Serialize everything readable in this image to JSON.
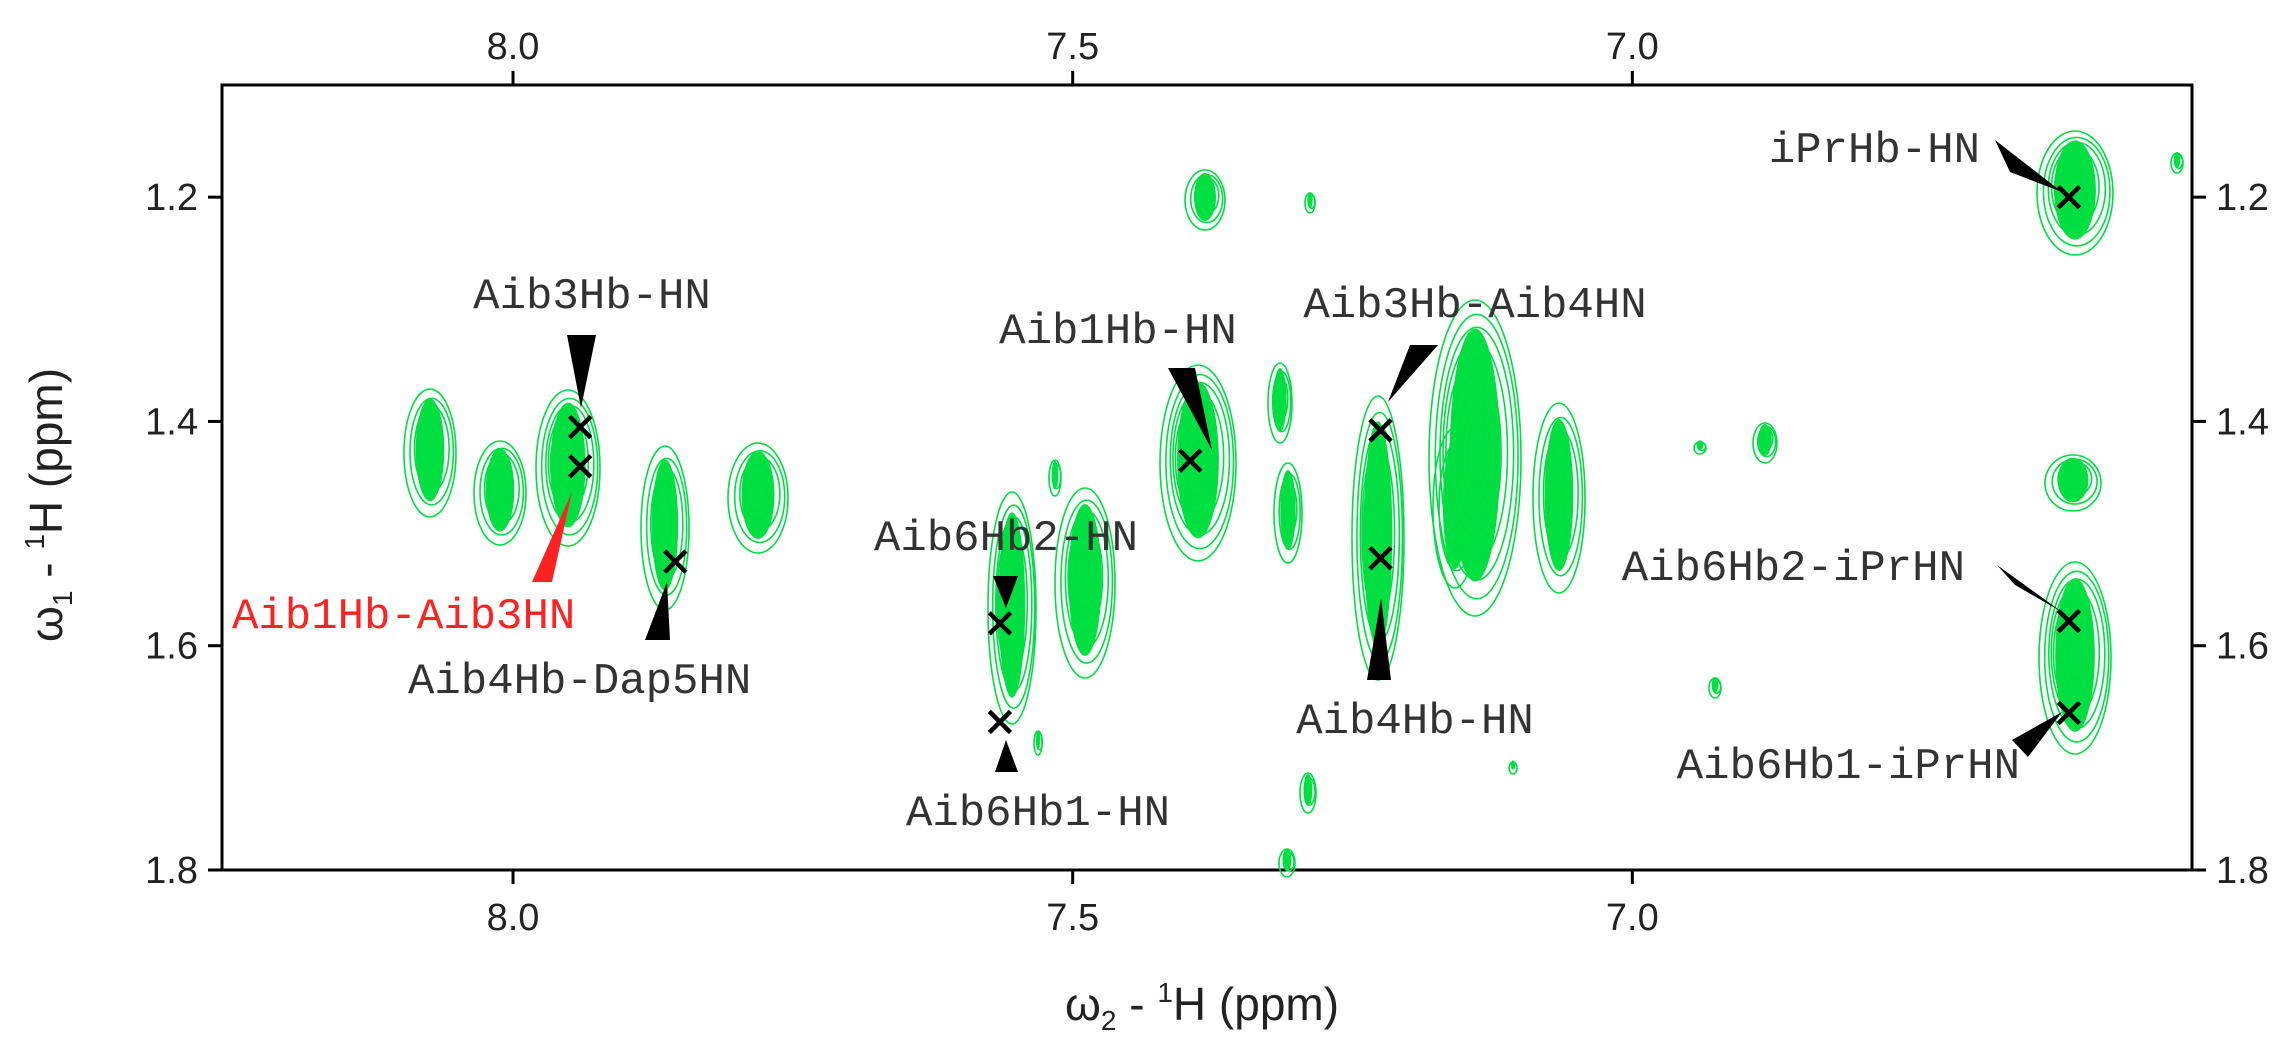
{
  "chart_data": {
    "type": "scatter",
    "xlabel_prefix": "ω",
    "xlabel_sub": "2",
    "xlabel_mid": " - ",
    "xlabel_sup": "1",
    "xlabel_tail": "H  (ppm)",
    "ylabel_prefix": "ω",
    "ylabel_sub": "1",
    "ylabel_mid": " - ",
    "ylabel_sup": "1",
    "ylabel_tail": "H  (ppm)",
    "x_axis": {
      "range": [
        8.26,
        6.5
      ],
      "reversed": true,
      "ticks": [
        8.0,
        7.5,
        7.0
      ],
      "tick_labels": [
        "8.0",
        "7.5",
        "7.0"
      ]
    },
    "y_axis": {
      "range": [
        1.1,
        1.8
      ],
      "reversed": true,
      "ticks": [
        1.2,
        1.4,
        1.6,
        1.8
      ],
      "tick_labels": [
        "1.2",
        "1.4",
        "1.6",
        "1.8"
      ]
    },
    "contour_color": "#00dd44",
    "marker_color": "#000000",
    "highlight_color": "#ff2222",
    "peaks": [
      {
        "label": "iPrHb-HN",
        "x": 6.61,
        "y": 1.2
      },
      {
        "label": "Aib3Hb-HN",
        "x": 7.94,
        "y": 1.405
      },
      {
        "label": "Aib1Hb-Aib3HN",
        "x": 7.94,
        "y": 1.44,
        "highlight": true
      },
      {
        "label": "Aib4Hb-Dap5HN",
        "x": 7.855,
        "y": 1.525
      },
      {
        "label": "Aib6Hb2-HN",
        "x": 7.565,
        "y": 1.58
      },
      {
        "label": "Aib6Hb1-HN",
        "x": 7.565,
        "y": 1.668
      },
      {
        "label": "Aib1Hb-HN",
        "x": 7.395,
        "y": 1.435
      },
      {
        "label": "Aib3Hb-Aib4HN",
        "x": 7.225,
        "y": 1.408
      },
      {
        "label": "Aib4Hb-HN",
        "x": 7.225,
        "y": 1.522
      },
      {
        "label": "Aib6Hb2-iPrHN",
        "x": 6.61,
        "y": 1.578
      },
      {
        "label": "Aib6Hb1-iPrHN",
        "x": 6.61,
        "y": 1.66
      }
    ]
  }
}
